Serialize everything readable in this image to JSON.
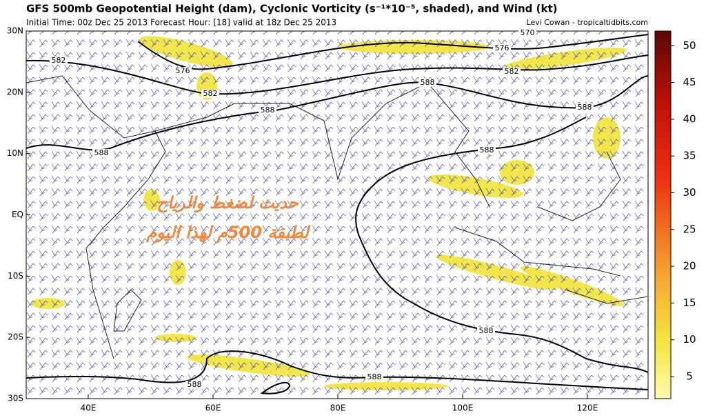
{
  "header": {
    "title": "GFS 500mb Geopotential Height (dam), Cyclonic Vorticity (s⁻¹*10⁻⁵, shaded), and Wind (kt)",
    "subtitle": "Initial Time: 00z Dec 25 2013 Forecast Hour: [18] valid at 18z Dec 25 2013",
    "credit": "Levi Cowan - tropicaltidbits.com"
  },
  "map": {
    "lat_labels": [
      "30N",
      "20N",
      "10N",
      "EQ",
      "10S",
      "20S",
      "30S"
    ],
    "lon_labels": [
      "40E",
      "60E",
      "80E",
      "100E",
      "120E"
    ],
    "contour_labels": [
      "582",
      "576",
      "582",
      "588",
      "588",
      "570",
      "576",
      "582",
      "588",
      "588",
      "588",
      "588",
      "588",
      "588"
    ],
    "overlay_text": [
      "حديث لضغط والرياح",
      "لطبقة 500م لهذا اليوم"
    ]
  },
  "colorbar": {
    "range": [
      2,
      52
    ],
    "ticks": [
      5,
      10,
      15,
      20,
      25,
      30,
      35,
      40,
      45,
      50
    ]
  }
}
